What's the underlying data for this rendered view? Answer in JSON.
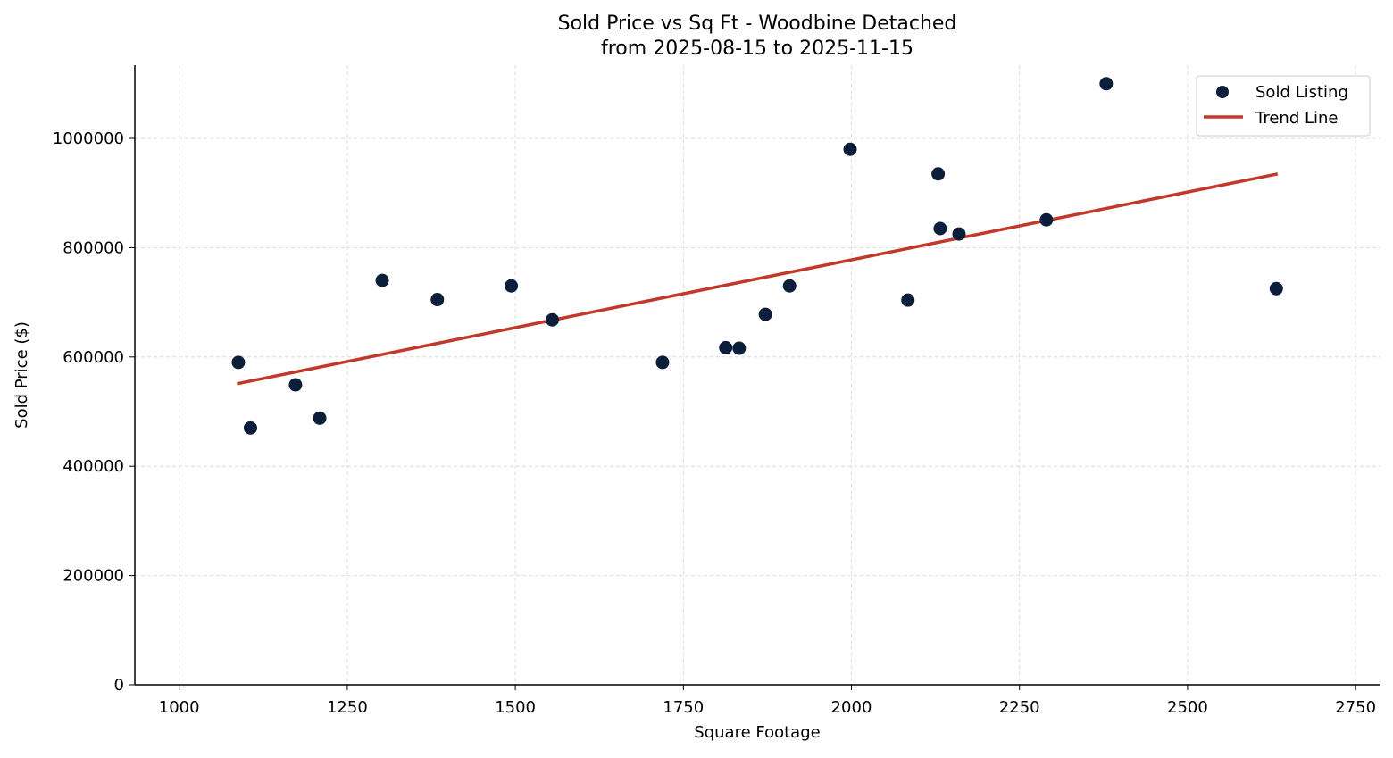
{
  "chart_data": {
    "type": "scatter",
    "title": "Sold Price vs Sq Ft - Woodbine Detached",
    "subtitle": "from 2025-08-15 to 2025-11-15",
    "xlabel": "Square Footage",
    "ylabel": "Sold Price ($)",
    "xlim": [
      934,
      2787
    ],
    "ylim": [
      0,
      1134000
    ],
    "xticks": [
      1000,
      1250,
      1500,
      1750,
      2000,
      2250,
      2500,
      2750
    ],
    "yticks": [
      0,
      200000,
      400000,
      600000,
      800000,
      1000000
    ],
    "grid": true,
    "legend_position": "top-right",
    "series": [
      {
        "name": "Sold Listing",
        "type": "scatter",
        "color": "#0b1f3a",
        "points": [
          [
            1088,
            590000
          ],
          [
            1106,
            470000
          ],
          [
            1173,
            549000
          ],
          [
            1209,
            488000
          ],
          [
            1302,
            740000
          ],
          [
            1384,
            705000
          ],
          [
            1494,
            730000
          ],
          [
            1555,
            668000
          ],
          [
            1719,
            590000
          ],
          [
            1813,
            617000
          ],
          [
            1833,
            616000
          ],
          [
            1872,
            678000
          ],
          [
            1908,
            730000
          ],
          [
            1998,
            980000
          ],
          [
            2084,
            704000
          ],
          [
            2129,
            935000
          ],
          [
            2132,
            835000
          ],
          [
            2160,
            825000
          ],
          [
            2290,
            851000
          ],
          [
            2379,
            1100000
          ],
          [
            2632,
            725000
          ]
        ]
      },
      {
        "name": "Trend Line",
        "type": "line",
        "color": "#c0392b",
        "points": [
          [
            1086,
            551000
          ],
          [
            2634,
            935000
          ]
        ]
      }
    ]
  }
}
